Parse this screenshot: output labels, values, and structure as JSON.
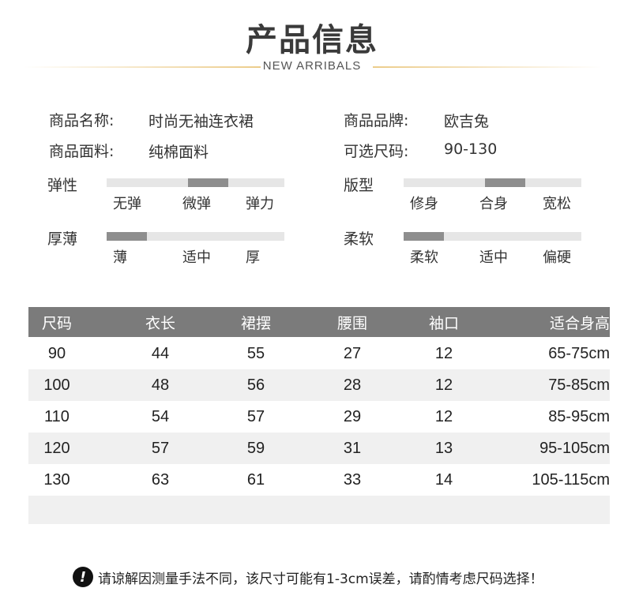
{
  "header": {
    "title": "产品信息",
    "subtitle": "NEW ARRIBALS"
  },
  "info": [
    {
      "label": "商品名称:",
      "value": "时尚无袖连衣裙"
    },
    {
      "label": "商品品牌:",
      "value": "欧吉兔"
    },
    {
      "label": "商品面料:",
      "value": "纯棉面料"
    },
    {
      "label": "可选尺码:",
      "value": "90-130"
    }
  ],
  "scales": [
    {
      "label": "弹性",
      "options": [
        "无弹",
        "微弹",
        "弹力"
      ],
      "selected": "微弹",
      "level_percent": 50
    },
    {
      "label": "版型",
      "options": [
        "修身",
        "合身",
        "宽松"
      ],
      "selected": "合身",
      "level_percent": 50
    },
    {
      "label": "厚薄",
      "options": [
        "薄",
        "适中",
        "厚"
      ],
      "selected": "薄",
      "level_percent": 0
    },
    {
      "label": "柔软",
      "options": [
        "柔软",
        "适中",
        "偏硬"
      ],
      "selected": "柔软",
      "level_percent": 0
    }
  ],
  "table": {
    "headers": [
      "尺码",
      "衣长",
      "裙摆",
      "腰围",
      "袖口",
      "适合身高"
    ],
    "rows": [
      [
        "90",
        "44",
        "55",
        "27",
        "12",
        "65-75cm"
      ],
      [
        "100",
        "48",
        "56",
        "28",
        "12",
        "75-85cm"
      ],
      [
        "110",
        "54",
        "57",
        "29",
        "12",
        "85-95cm"
      ],
      [
        "120",
        "57",
        "59",
        "31",
        "13",
        "95-105cm"
      ],
      [
        "130",
        "63",
        "61",
        "33",
        "14",
        "105-115cm"
      ]
    ]
  },
  "note": {
    "icon": "exclamation-icon",
    "text": "请谅解因测量手法不同，该尺寸可能有1-3cm误差，请酌情考虑尺码选择！"
  },
  "colors": {
    "accent_line": "#eccc8a",
    "table_header": "#7b7b7b",
    "bar_fill": "#8e8e8e",
    "bar_track": "#e6e6e6"
  }
}
